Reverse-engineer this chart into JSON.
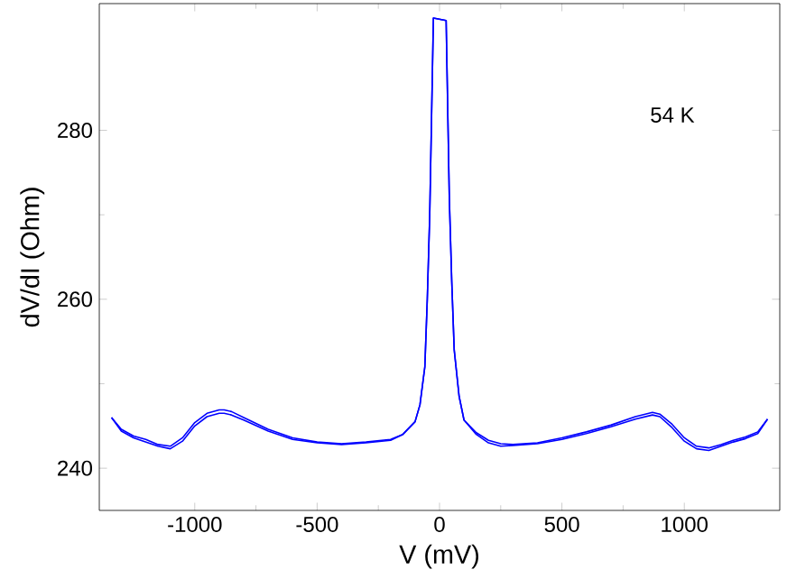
{
  "chart_data": {
    "type": "line",
    "xlabel": "V (mV)",
    "ylabel": "dV/dI (Ohm)",
    "annotations": [
      "54 K"
    ],
    "xlim": [
      -1390,
      1390
    ],
    "ylim": [
      235,
      295
    ],
    "xticks": [
      -1000,
      -500,
      0,
      500,
      1000
    ],
    "yticks": [
      240,
      260,
      280
    ],
    "marker": "none",
    "line_style": "solid",
    "series": [
      {
        "color": "#0000ff",
        "x": [
          -1340,
          -1300,
          -1250,
          -1200,
          -1150,
          -1100,
          -1050,
          -1000,
          -950,
          -900,
          -880,
          -850,
          -800,
          -700,
          -600,
          -500,
          -400,
          -300,
          -200,
          -150,
          -100,
          -80,
          -60,
          -50,
          -40,
          -25,
          27,
          40,
          50,
          60,
          80,
          100,
          150,
          200,
          250,
          300,
          400,
          500,
          600,
          700,
          800,
          870,
          900,
          950,
          1000,
          1050,
          1100,
          1150,
          1200,
          1250,
          1300,
          1340
        ],
        "values": [
          246.0,
          244.6,
          243.8,
          243.4,
          242.8,
          242.6,
          243.6,
          245.4,
          246.5,
          246.9,
          246.9,
          246.7,
          246.0,
          244.6,
          243.6,
          243.1,
          242.9,
          243.1,
          243.4,
          244.0,
          245.5,
          247.5,
          252,
          260,
          270,
          293.3,
          293.0,
          272,
          262,
          254,
          248.5,
          245.7,
          244.2,
          243.3,
          242.9,
          242.8,
          243.0,
          243.6,
          244.3,
          245.1,
          246.1,
          246.6,
          246.4,
          245.2,
          243.6,
          242.6,
          242.4,
          242.8,
          243.3,
          243.7,
          244.3,
          245.8
        ]
      },
      {
        "color": "#0000ff",
        "x": [
          -1340,
          -1300,
          -1250,
          -1200,
          -1150,
          -1100,
          -1050,
          -1000,
          -950,
          -900,
          -880,
          -850,
          -800,
          -700,
          -600,
          -500,
          -400,
          -300,
          -200,
          -150,
          -100,
          -80,
          -60,
          -50,
          -40,
          -25,
          27,
          40,
          50,
          60,
          80,
          100,
          150,
          200,
          250,
          300,
          400,
          500,
          600,
          700,
          800,
          870,
          900,
          950,
          1000,
          1050,
          1100,
          1150,
          1200,
          1250,
          1300,
          1340
        ],
        "values": [
          246.0,
          244.4,
          243.6,
          243.1,
          242.6,
          242.3,
          243.2,
          245.0,
          246.1,
          246.5,
          246.5,
          246.3,
          245.7,
          244.4,
          243.4,
          243.0,
          242.8,
          243.0,
          243.3,
          244.0,
          245.5,
          247.5,
          252,
          260,
          270,
          293.3,
          293.0,
          272,
          262,
          254,
          248.5,
          245.7,
          244.0,
          243.0,
          242.6,
          242.7,
          242.9,
          243.4,
          244.1,
          244.9,
          245.8,
          246.3,
          246.1,
          244.8,
          243.2,
          242.3,
          242.1,
          242.6,
          243.1,
          243.5,
          244.1,
          245.8
        ]
      }
    ]
  }
}
